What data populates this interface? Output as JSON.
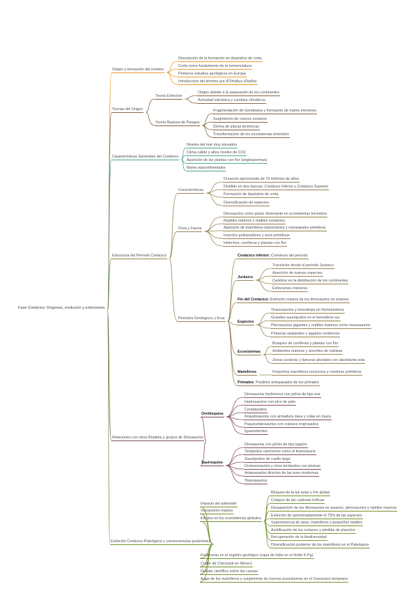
{
  "mindmap": {
    "label": "Fase Cretácica: Orígenes, evolución y extinciones",
    "children": [
      {
        "label": "Origen y formación del nombre",
        "color": "#e6a23c",
        "children": [
          {
            "label": "Descripción de la formación en depósitos de creta"
          },
          {
            "label": "Creta como fundamento de la nomenclatura"
          },
          {
            "label": "Primeros estudios geológicos en Europa"
          },
          {
            "label": "Introducción del término por d'Omalius d'Halloy"
          }
        ]
      },
      {
        "label": "Teorías del Origen",
        "color": "#8a6d4b",
        "children": [
          {
            "label": "Teoría Extinción",
            "children": [
              {
                "label": "Origen debido a la separación de los continentes"
              },
              {
                "label": "Actividad volcánica y cambios climáticos"
              }
            ]
          },
          {
            "label": "Teoría Ruptura de Pangea",
            "children": [
              {
                "label": "Fragmentación de Gondwana y formación de mares interiores"
              },
              {
                "label": "Surgimiento de nuevos océanos"
              },
              {
                "label": "Deriva de placas tectónicas"
              },
              {
                "label": "Transformación de los ecosistemas terrestres"
              }
            ]
          }
        ]
      },
      {
        "label": "Características Generales del Cretácico",
        "color": "#5aa9a0",
        "children": [
          {
            "label": "Niveles del mar muy elevados"
          },
          {
            "label": "Clima cálido y altos niveles de CO2"
          },
          {
            "label": "Aparición de las plantas con flor (angiospermas)"
          },
          {
            "label": "Mares epicontinentales"
          }
        ]
      },
      {
        "label": "Estructura del Período Cretácico",
        "color": "#9a8a5a",
        "children": [
          {
            "label": "Características",
            "children": [
              {
                "label": "Duración aproximada de 79 millones de años"
              },
              {
                "label": "Dividido en dos épocas: Cretácico Inferior y Cretácico Superior"
              },
              {
                "label": "Formación de depósitos de creta"
              },
              {
                "label": "Diversificación de especies"
              }
            ]
          },
          {
            "label": "Flora y Fauna",
            "children": [
              {
                "label": "Dinosaurios como grupo dominante en ecosistemas terrestres"
              },
              {
                "label": "Reptiles marinos y reptiles voladores"
              },
              {
                "label": "Aparición de mamíferos placentarios y marsupiales primitivos"
              },
              {
                "label": "Insectos polinizadores y aves primitivas"
              },
              {
                "label": "Helechos, coníferas y plantas con flor"
              }
            ]
          },
          {
            "label": "Periodos Geológicos y Eras",
            "children": [
              {
                "term": "Cretácico Inferior:",
                "label": "Comienzo del período"
              },
              {
                "term": "Jurásico",
                "children": [
                  {
                    "label": "Transición desde el período Jurásico"
                  },
                  {
                    "label": "Aparición de nuevas especies"
                  },
                  {
                    "label": "Cambios en la distribución de los continentes"
                  },
                  {
                    "label": "Extinciones menores"
                  }
                ]
              },
              {
                "term": "Fin del Cretácico:",
                "label": "Extinción masiva de los dinosaurios no avianos"
              },
              {
                "term": "Especies",
                "children": [
                  {
                    "label": "Tiranosaurios y triceratops en Norteamérica"
                  },
                  {
                    "label": "Grandes saurópodos en el hemisferio sur"
                  },
                  {
                    "label": "Pterosaurios gigantes y reptiles marinos como mosasaurios"
                  },
                  {
                    "label": "Primeras serpientes y lagartos modernos"
                  }
                ]
              },
              {
                "term": "Ecosistemas",
                "children": [
                  {
                    "label": "Bosques de coníferas y plantas con flor"
                  },
                  {
                    "label": "Ambientes marinos y arrecifes de rudistas"
                  },
                  {
                    "label": "Zonas costeras y llanuras aluviales con abundante vida"
                  }
                ]
              },
              {
                "term": "Mamíferos",
                "children": [
                  {
                    "label": "Pequeños mamíferos nocturnos y roedores primitivos"
                  }
                ]
              },
              {
                "term": "Primates:",
                "label": "Posibles antepasados de los primates"
              }
            ]
          }
        ]
      },
      {
        "label": "Relaciones con otros Reptiles y grupos de Dinosaurios",
        "color": "#8a5a6a",
        "children": [
          {
            "term": "Ornitisquios",
            "children": [
              {
                "label": "Dinosaurios herbívoros con pelvis de tipo ave"
              },
              {
                "label": "Hadrosaurios con pico de pato"
              },
              {
                "label": "Ceratópsidos"
              },
              {
                "label": "Anquilosaurios con armadura ósea y colas en maza"
              },
              {
                "label": "Paquicefalosaurios con cráneos engrosados"
              },
              {
                "label": "Iguanodontes"
              }
            ]
          },
          {
            "term": "Saurisquios",
            "children": [
              {
                "label": "Dinosaurios con pelvis de tipo lagarto"
              },
              {
                "label": "Terópodos carnívoros como el tiranosaurio"
              },
              {
                "label": "Saurópodos de cuello largo"
              },
              {
                "label": "Dromeosaurios y otros terópodos con plumas"
              },
              {
                "label": "Antepasados directos de las aves modernas"
              },
              {
                "label": "Titanosaurios"
              }
            ]
          }
        ]
      },
      {
        "label": "Extinción Cretácico-Paleógeno y consecuencias posteriores",
        "color": "#7a9a3a",
        "children": [
          {
            "label": "Impacto del asteroide"
          },
          {
            "label": "Vulcanismo masivo"
          },
          {
            "label": "Efectos en los ecosistemas globales",
            "children": [
              {
                "label": "Bloqueo de la luz solar y frío global"
              },
              {
                "label": "Colapso de las cadenas tróficas"
              },
              {
                "label": "Desaparición de los dinosaurios no avianos, pterosaurios y reptiles marinos"
              },
              {
                "label": "Extinción de aproximadamente el 75% de las especies"
              },
              {
                "label": "Supervivencia de aves, mamíferos y pequeños reptiles"
              },
              {
                "label": "Acidificación de los océanos y pérdida de plancton"
              },
              {
                "label": "Recuperación de la biodiversidad"
              },
              {
                "label": "Diversificación posterior de los mamíferos en el Paleógeno"
              }
            ]
          },
          {
            "label": "Evidencias en el registro geológico (capa de iridio en el límite K-Pg)"
          },
          {
            "label": "Cráter de Chicxulub en México"
          },
          {
            "label": "Debate científico sobre las causas"
          },
          {
            "label": "Auge de los mamíferos y surgimiento de nuevos ecosistemas en el Cenozoico temprano"
          }
        ]
      }
    ]
  }
}
